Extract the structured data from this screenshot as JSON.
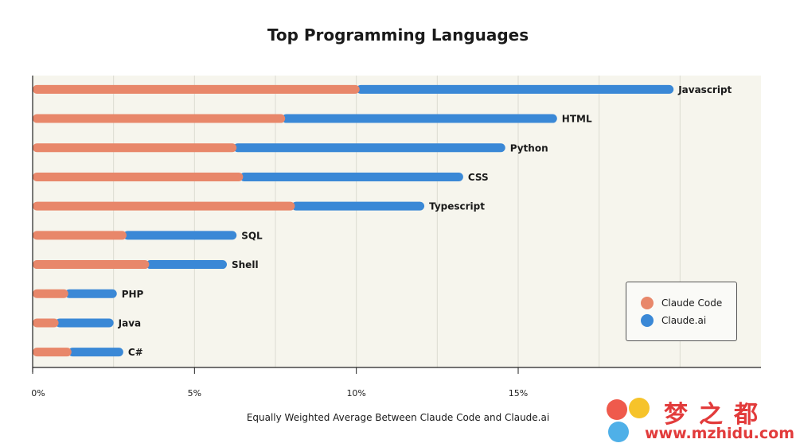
{
  "title": "Top Programming Languages",
  "xlabel": "Equally Weighted Average Between Claude Code and Claude.ai",
  "colors": {
    "claude_code": "#e8876a",
    "claude_ai": "#3a88d6",
    "plot_bg": "#f6f5ed"
  },
  "legend": {
    "claude_code": "Claude Code",
    "claude_ai": "Claude.ai"
  },
  "watermark": {
    "text_cn": "梦之都",
    "url": "www.mzhidu.com"
  },
  "chart_data": {
    "type": "bar",
    "orientation": "horizontal",
    "stacked": true,
    "xlim": [
      0,
      22.5
    ],
    "xticks": [
      0,
      5,
      10,
      15
    ],
    "xtick_labels": [
      "0%",
      "5%",
      "10%",
      "15%"
    ],
    "legend_position": "bottom-right",
    "grid": true,
    "categories": [
      "Javascript",
      "HTML",
      "Python",
      "CSS",
      "Typescript",
      "SQL",
      "Shell",
      "PHP",
      "Java",
      "C#"
    ],
    "series": [
      {
        "name": "Claude Code",
        "values": [
          10.1,
          7.8,
          6.3,
          6.5,
          8.1,
          2.9,
          3.6,
          1.1,
          0.8,
          1.2
        ]
      },
      {
        "name": "Claude.ai",
        "values": [
          9.7,
          8.4,
          8.3,
          6.8,
          4.0,
          3.4,
          2.4,
          1.5,
          1.7,
          1.6
        ]
      }
    ]
  }
}
